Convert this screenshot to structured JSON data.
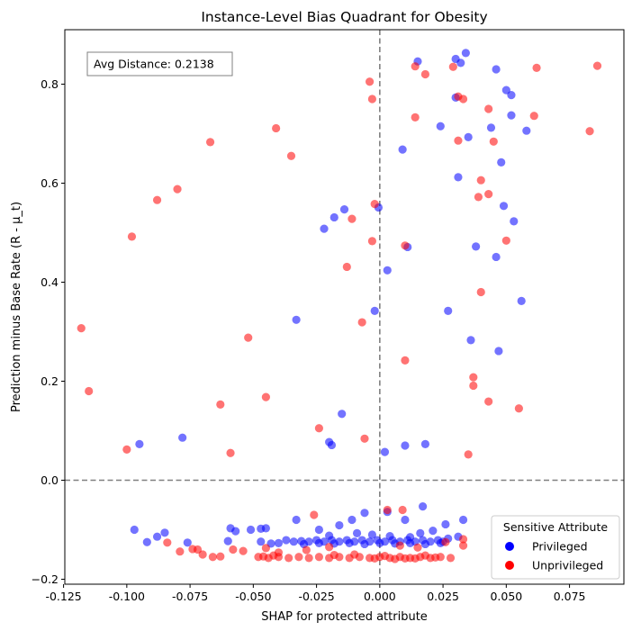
{
  "chart_data": {
    "type": "scatter",
    "title": "Instance-Level Bias Quadrant for Obesity",
    "xlabel": "SHAP for protected attribute",
    "ylabel": "Prediction minus Base Rate (R - μ_t)",
    "xlim": [
      -0.1245,
      0.0965
    ],
    "ylim": [
      -0.21,
      0.91
    ],
    "x_ticks": [
      -0.125,
      -0.1,
      -0.075,
      -0.05,
      -0.025,
      0.0,
      0.025,
      0.05,
      0.075
    ],
    "x_tick_labels": [
      "-0.125",
      "-0.100",
      "-0.075",
      "-0.050",
      "-0.025",
      "0.000",
      "0.025",
      "0.050",
      "0.075"
    ],
    "y_ticks": [
      -0.2,
      0.0,
      0.2,
      0.4,
      0.6,
      0.8
    ],
    "y_tick_labels": [
      "−0.2",
      "0.0",
      "0.2",
      "0.4",
      "0.6",
      "0.8"
    ],
    "reference_lines": {
      "x": 0.0,
      "y": 0.0,
      "style": "dashed",
      "color": "#808080"
    },
    "annotation": "Avg Distance: 0.2138",
    "legend": {
      "title": "Sensitive Attribute",
      "position": "lower-right",
      "entries": [
        {
          "label": "Privileged",
          "color": "#0000ff"
        },
        {
          "label": "Unprivileged",
          "color": "#ff0000"
        }
      ]
    },
    "series": [
      {
        "name": "Privileged",
        "color": "#0000ff",
        "points": [
          [
            0.015,
            0.846
          ],
          [
            0.03,
            0.851
          ],
          [
            0.034,
            0.863
          ],
          [
            0.032,
            0.843
          ],
          [
            0.046,
            0.83
          ],
          [
            0.05,
            0.788
          ],
          [
            0.03,
            0.773
          ],
          [
            0.052,
            0.778
          ],
          [
            0.052,
            0.737
          ],
          [
            0.044,
            0.712
          ],
          [
            0.058,
            0.706
          ],
          [
            0.024,
            0.715
          ],
          [
            0.035,
            0.693
          ],
          [
            0.009,
            0.668
          ],
          [
            0.048,
            0.642
          ],
          [
            0.031,
            0.612
          ],
          [
            -0.014,
            0.547
          ],
          [
            -0.0005,
            0.551
          ],
          [
            0.049,
            0.554
          ],
          [
            -0.018,
            0.531
          ],
          [
            -0.022,
            0.508
          ],
          [
            0.053,
            0.523
          ],
          [
            0.038,
            0.472
          ],
          [
            0.011,
            0.471
          ],
          [
            0.046,
            0.451
          ],
          [
            0.003,
            0.424
          ],
          [
            0.056,
            0.362
          ],
          [
            -0.002,
            0.342
          ],
          [
            0.027,
            0.342
          ],
          [
            -0.033,
            0.324
          ],
          [
            0.036,
            0.283
          ],
          [
            0.047,
            0.261
          ],
          [
            -0.015,
            0.134
          ],
          [
            -0.078,
            0.086
          ],
          [
            -0.02,
            0.077
          ],
          [
            -0.019,
            0.071
          ],
          [
            -0.095,
            0.073
          ],
          [
            0.01,
            0.07
          ],
          [
            0.018,
            0.073
          ],
          [
            0.002,
            0.057
          ],
          [
            0.017,
            -0.053
          ],
          [
            -0.006,
            -0.066
          ],
          [
            0.003,
            -0.064
          ],
          [
            0.033,
            -0.08
          ],
          [
            -0.033,
            -0.08
          ],
          [
            -0.011,
            -0.08
          ],
          [
            0.01,
            -0.08
          ],
          [
            -0.097,
            -0.1
          ],
          [
            -0.059,
            -0.097
          ],
          [
            -0.047,
            -0.098
          ],
          [
            -0.051,
            -0.1
          ],
          [
            -0.024,
            -0.1
          ],
          [
            -0.045,
            -0.097
          ],
          [
            -0.057,
            -0.103
          ],
          [
            -0.085,
            -0.106
          ],
          [
            0.026,
            -0.089
          ],
          [
            0.021,
            -0.102
          ],
          [
            0.016,
            -0.107
          ],
          [
            -0.009,
            -0.107
          ],
          [
            -0.016,
            -0.091
          ],
          [
            -0.088,
            -0.114
          ],
          [
            -0.092,
            -0.125
          ],
          [
            -0.076,
            -0.126
          ],
          [
            -0.06,
            -0.123
          ],
          [
            -0.047,
            -0.124
          ],
          [
            -0.037,
            -0.121
          ],
          [
            -0.034,
            -0.124
          ],
          [
            -0.031,
            -0.123
          ],
          [
            -0.028,
            -0.124
          ],
          [
            -0.025,
            -0.121
          ],
          [
            -0.022,
            -0.124
          ],
          [
            -0.019,
            -0.121
          ],
          [
            -0.016,
            -0.124
          ],
          [
            -0.013,
            -0.121
          ],
          [
            -0.01,
            -0.124
          ],
          [
            -0.007,
            -0.121
          ],
          [
            -0.004,
            -0.124
          ],
          [
            -0.001,
            -0.121
          ],
          [
            0.002,
            -0.124
          ],
          [
            0.005,
            -0.121
          ],
          [
            0.008,
            -0.124
          ],
          [
            0.011,
            -0.121
          ],
          [
            0.014,
            -0.124
          ],
          [
            0.017,
            -0.121
          ],
          [
            0.02,
            -0.124
          ],
          [
            0.023,
            -0.121
          ],
          [
            0.025,
            -0.124
          ],
          [
            -0.03,
            -0.129
          ],
          [
            -0.024,
            -0.127
          ],
          [
            -0.018,
            -0.128
          ],
          [
            -0.012,
            -0.127
          ],
          [
            -0.006,
            -0.129
          ],
          [
            0.0,
            -0.127
          ],
          [
            0.006,
            -0.128
          ],
          [
            0.012,
            -0.127
          ],
          [
            0.018,
            -0.129
          ],
          [
            0.024,
            -0.127
          ],
          [
            -0.003,
            -0.11
          ],
          [
            0.004,
            -0.113
          ],
          [
            0.012,
            -0.115
          ],
          [
            -0.02,
            -0.112
          ],
          [
            -0.04,
            -0.127
          ],
          [
            -0.043,
            -0.128
          ],
          [
            0.027,
            -0.118
          ],
          [
            0.031,
            -0.114
          ]
        ]
      },
      {
        "name": "Unprivileged",
        "color": "#ff0000",
        "points": [
          [
            0.086,
            0.837
          ],
          [
            0.062,
            0.833
          ],
          [
            0.014,
            0.836
          ],
          [
            0.018,
            0.82
          ],
          [
            0.029,
            0.835
          ],
          [
            -0.004,
            0.805
          ],
          [
            -0.003,
            0.77
          ],
          [
            0.031,
            0.775
          ],
          [
            0.033,
            0.77
          ],
          [
            0.043,
            0.75
          ],
          [
            0.014,
            0.733
          ],
          [
            0.061,
            0.736
          ],
          [
            0.083,
            0.705
          ],
          [
            -0.041,
            0.711
          ],
          [
            0.031,
            0.686
          ],
          [
            0.045,
            0.684
          ],
          [
            -0.067,
            0.683
          ],
          [
            -0.035,
            0.655
          ],
          [
            0.04,
            0.606
          ],
          [
            0.039,
            0.572
          ],
          [
            0.043,
            0.578
          ],
          [
            -0.08,
            0.588
          ],
          [
            -0.088,
            0.566
          ],
          [
            -0.002,
            0.558
          ],
          [
            -0.011,
            0.528
          ],
          [
            -0.098,
            0.492
          ],
          [
            0.05,
            0.484
          ],
          [
            -0.003,
            0.483
          ],
          [
            0.01,
            0.474
          ],
          [
            -0.013,
            0.431
          ],
          [
            0.04,
            0.38
          ],
          [
            -0.007,
            0.319
          ],
          [
            -0.118,
            0.307
          ],
          [
            -0.052,
            0.288
          ],
          [
            0.01,
            0.242
          ],
          [
            0.037,
            0.208
          ],
          [
            0.037,
            0.191
          ],
          [
            -0.115,
            0.18
          ],
          [
            0.043,
            0.159
          ],
          [
            -0.045,
            0.168
          ],
          [
            -0.063,
            0.153
          ],
          [
            0.055,
            0.145
          ],
          [
            -0.024,
            0.105
          ],
          [
            -0.006,
            0.084
          ],
          [
            -0.1,
            0.062
          ],
          [
            -0.059,
            0.055
          ],
          [
            0.035,
            0.052
          ],
          [
            0.003,
            -0.06
          ],
          [
            0.009,
            -0.06
          ],
          [
            -0.026,
            -0.07
          ],
          [
            -0.084,
            -0.126
          ],
          [
            -0.079,
            -0.144
          ],
          [
            -0.074,
            -0.139
          ],
          [
            -0.07,
            -0.15
          ],
          [
            -0.066,
            -0.155
          ],
          [
            -0.058,
            -0.14
          ],
          [
            -0.054,
            -0.143
          ],
          [
            -0.045,
            -0.137
          ],
          [
            -0.04,
            -0.146
          ],
          [
            -0.029,
            -0.141
          ],
          [
            -0.02,
            -0.135
          ],
          [
            0.008,
            -0.132
          ],
          [
            0.015,
            -0.136
          ],
          [
            0.033,
            -0.119
          ],
          [
            0.033,
            -0.132
          ],
          [
            0.026,
            -0.125
          ],
          [
            -0.072,
            -0.14
          ],
          [
            -0.063,
            -0.154
          ],
          [
            -0.048,
            -0.155
          ],
          [
            -0.044,
            -0.157
          ],
          [
            -0.04,
            -0.155
          ],
          [
            -0.036,
            -0.157
          ],
          [
            -0.032,
            -0.155
          ],
          [
            -0.028,
            -0.157
          ],
          [
            -0.024,
            -0.155
          ],
          [
            -0.02,
            -0.157
          ],
          [
            -0.016,
            -0.155
          ],
          [
            -0.012,
            -0.157
          ],
          [
            -0.008,
            -0.155
          ],
          [
            -0.004,
            -0.157
          ],
          [
            0.0,
            -0.155
          ],
          [
            0.004,
            -0.157
          ],
          [
            0.008,
            -0.155
          ],
          [
            0.012,
            -0.157
          ],
          [
            0.016,
            -0.155
          ],
          [
            0.02,
            -0.157
          ],
          [
            0.024,
            -0.155
          ],
          [
            0.028,
            -0.157
          ],
          [
            -0.046,
            -0.154
          ],
          [
            -0.042,
            -0.152
          ],
          [
            -0.018,
            -0.151
          ],
          [
            0.002,
            -0.153
          ],
          [
            0.01,
            -0.158
          ],
          [
            0.014,
            -0.158
          ],
          [
            0.018,
            -0.152
          ],
          [
            0.022,
            -0.156
          ],
          [
            -0.01,
            -0.15
          ],
          [
            0.006,
            -0.159
          ],
          [
            -0.002,
            -0.158
          ]
        ]
      }
    ]
  }
}
